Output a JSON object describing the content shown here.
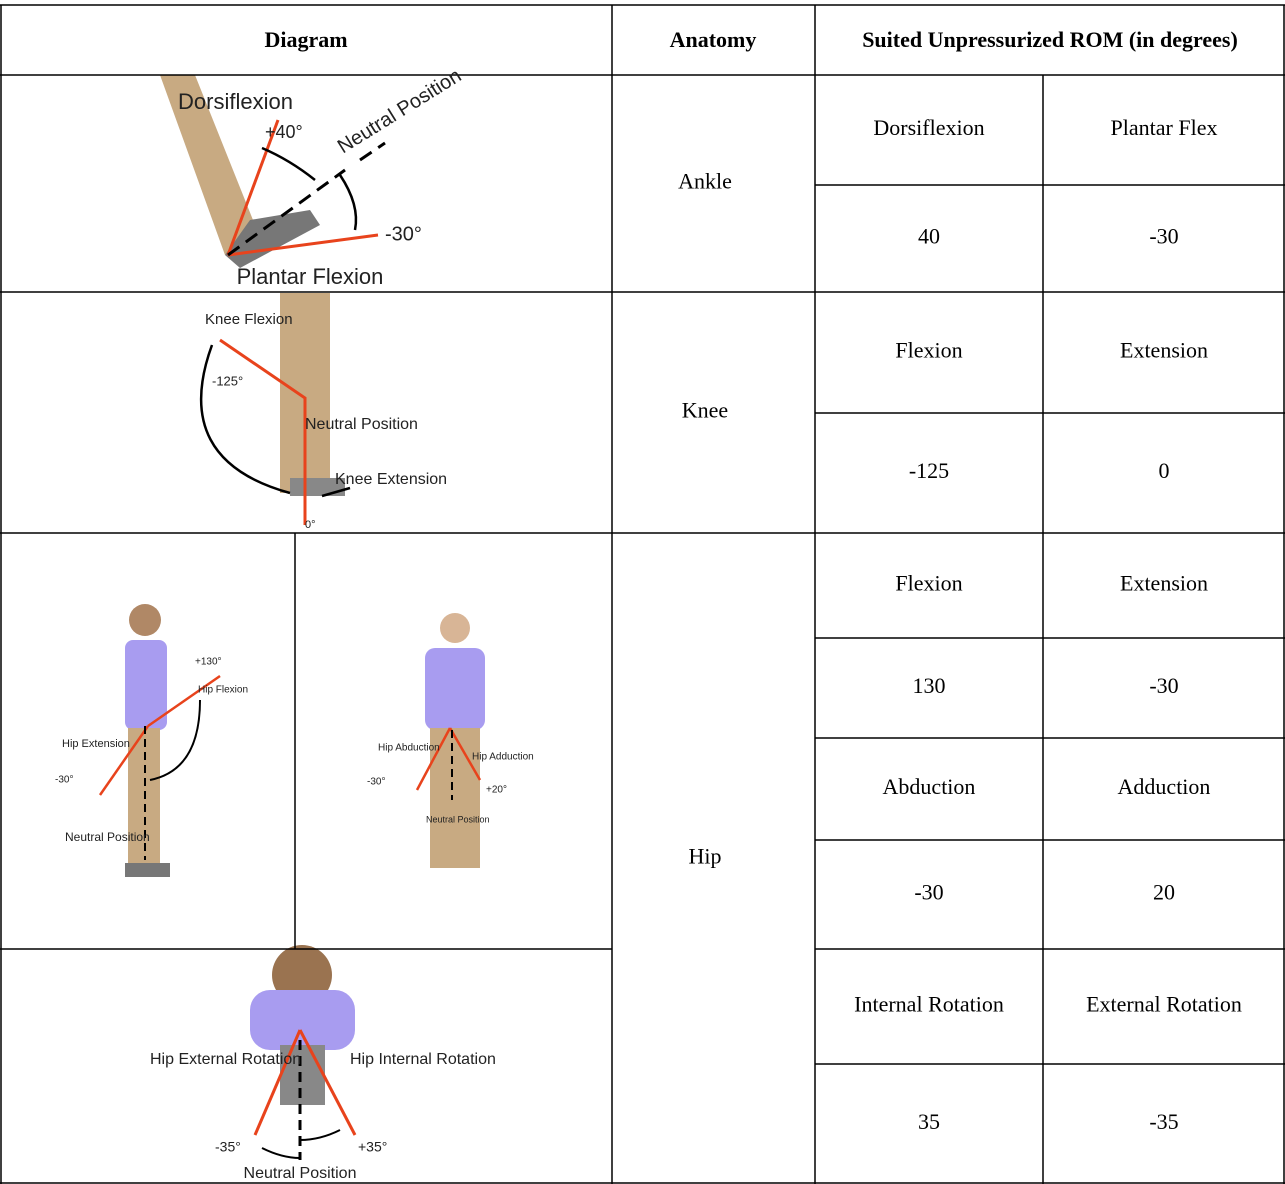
{
  "table": {
    "header": [
      "Diagram",
      "Anatomy",
      "Suited Unpressurized ROM (in degrees)"
    ],
    "rows": [
      {
        "anatomy": "Ankle",
        "motions": [
          [
            "Dorsiflexion",
            "Plantar Flex"
          ],
          [
            40,
            -30
          ]
        ]
      },
      {
        "anatomy": "Knee",
        "motions": [
          [
            "Flexion",
            "Extension"
          ],
          [
            -125,
            0
          ]
        ]
      },
      {
        "anatomy": "Hip",
        "motions": [
          [
            "Flexion",
            "Extension"
          ],
          [
            130,
            -30
          ],
          [
            "Abduction",
            "Adduction"
          ],
          [
            -30,
            20
          ],
          [
            "Internal Rotation",
            "External Rotation"
          ],
          [
            35,
            -35
          ]
        ]
      }
    ]
  },
  "diagrams": [
    {
      "labels": [
        "Dorsiflexion",
        "+40°",
        "Neutral Position",
        "-30°",
        "Plantar Flexion"
      ]
    },
    {
      "labels": [
        "Knee Flexion",
        "-125°",
        "Neutral Position",
        "Knee Extension",
        "0°"
      ]
    },
    {
      "labels": [
        "+130°",
        "Hip Flexion",
        "Hip Extension",
        "-30°",
        "Neutral Position"
      ]
    },
    {
      "labels": [
        "Hip Abduction",
        "Hip Adduction",
        "-30°",
        "+20°",
        "Neutral Position"
      ]
    },
    {
      "labels": [
        "Hip External Rotation",
        "Hip Internal Rotation",
        "-35°",
        "+35°",
        "Neutral Position"
      ]
    }
  ]
}
